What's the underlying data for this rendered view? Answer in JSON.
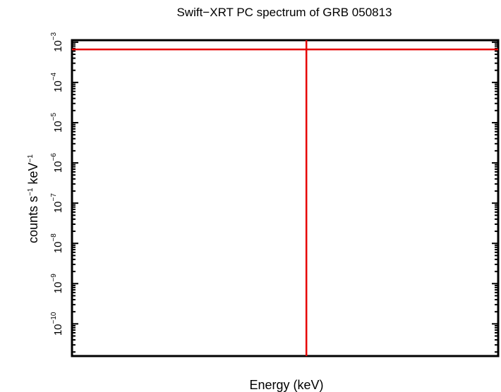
{
  "chart_data": {
    "type": "line",
    "title": "Swift−XRT PC spectrum of GRB 050813",
    "xlabel": "Energy (keV)",
    "ylabel_parts": [
      "counts s",
      "−1",
      " keV",
      "−1"
    ],
    "y_scale": "log",
    "ylim_exp": [
      -10.8,
      -2.95
    ],
    "y_tick_base": "10",
    "y_tick_exponents": [
      "−3",
      "−4",
      "−5",
      "−6",
      "−7",
      "−8",
      "−9",
      "−10"
    ],
    "y_tick_values": [
      -3,
      -4,
      -5,
      -6,
      -7,
      -8,
      -9,
      -10
    ],
    "series": [
      {
        "orientation": "horizontal",
        "y_exp": -3.18,
        "color": "#e60000"
      },
      {
        "orientation": "vertical",
        "x_fraction": 0.55,
        "color": "#e60000"
      }
    ],
    "frame_color": "#000000",
    "grid": false
  }
}
